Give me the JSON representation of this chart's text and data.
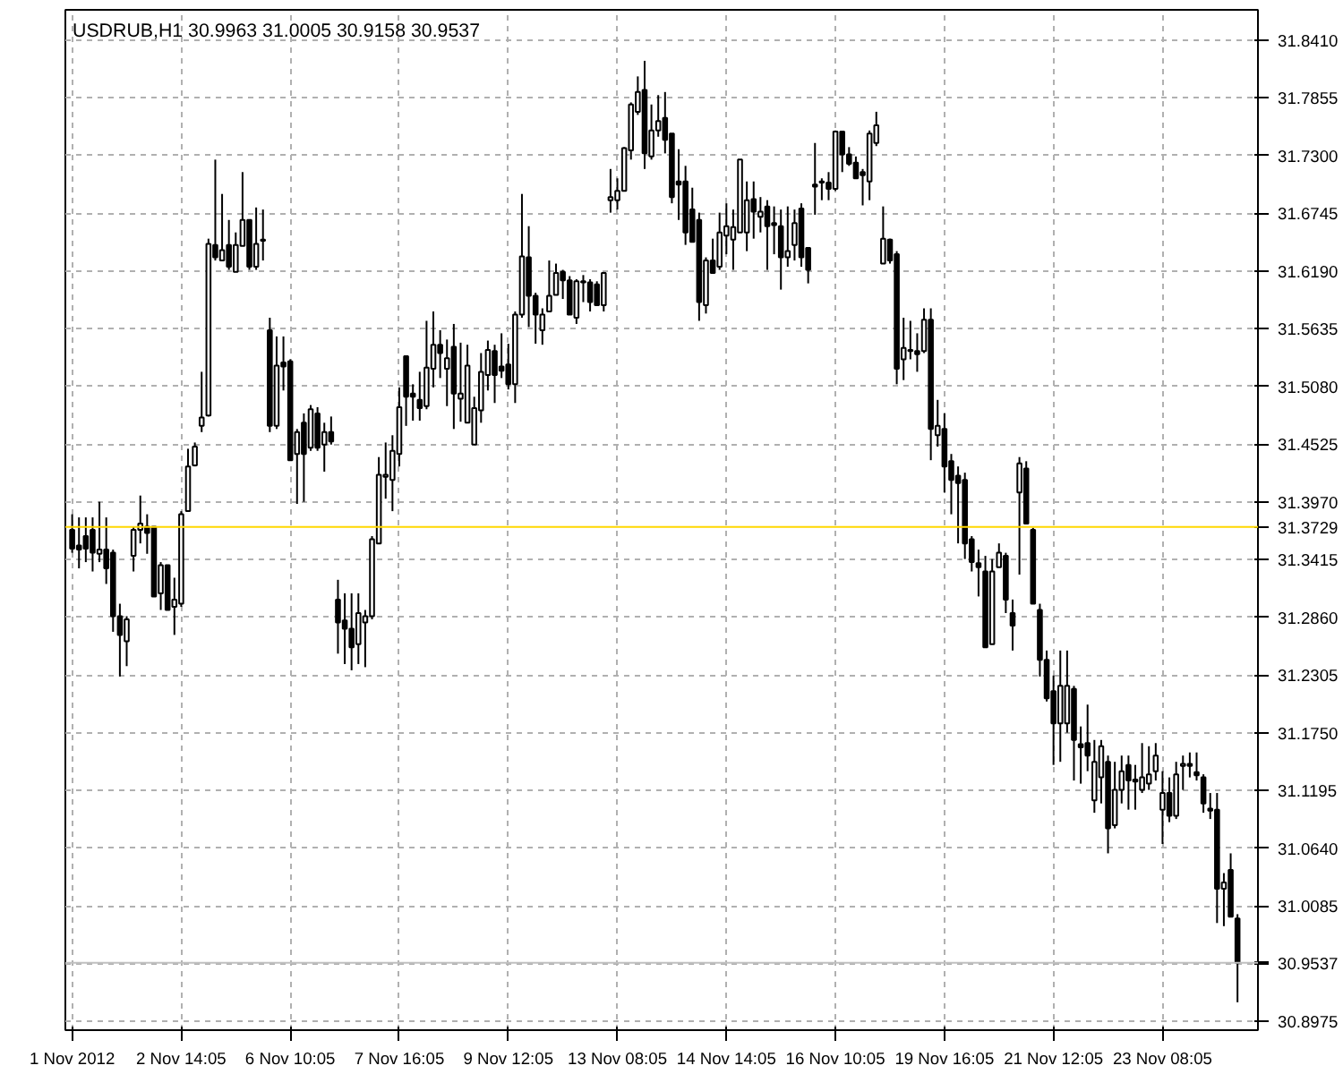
{
  "chart_data": {
    "type": "candlestick",
    "title": "USDRUB,H1  30.9963 31.0005 30.9158 30.9537",
    "categories": [
      "1 Nov 2012",
      null,
      null,
      null,
      null,
      null,
      null,
      null,
      null,
      null,
      null,
      null,
      null,
      null,
      null,
      null,
      "2 Nov 14:05",
      null,
      null,
      null,
      null,
      null,
      null,
      null,
      null,
      null,
      null,
      null,
      null,
      null,
      null,
      null,
      "6 Nov 10:05",
      null,
      null,
      null,
      null,
      null,
      null,
      null,
      null,
      null,
      null,
      null,
      null,
      null,
      null,
      null,
      "7 Nov 16:05",
      null,
      null,
      null,
      null,
      null,
      null,
      null,
      null,
      null,
      null,
      null,
      null,
      null,
      null,
      null,
      "9 Nov 12:05",
      null,
      null,
      null,
      null,
      null,
      null,
      null,
      null,
      null,
      null,
      null,
      null,
      null,
      null,
      null,
      "13 Nov 08:05",
      null,
      null,
      null,
      null,
      null,
      null,
      null,
      null,
      null,
      null,
      null,
      null,
      null,
      null,
      null,
      "14 Nov 14:05",
      null,
      null,
      null,
      null,
      null,
      null,
      null,
      null,
      null,
      null,
      null,
      null,
      null,
      null,
      null,
      "16 Nov 10:05",
      null,
      null,
      null,
      null,
      null,
      null,
      null,
      null,
      null,
      null,
      null,
      null,
      null,
      null,
      null,
      "19 Nov 16:05",
      null,
      null,
      null,
      null,
      null,
      null,
      null,
      null,
      null,
      null,
      null,
      null,
      null,
      null,
      null,
      "21 Nov 12:05",
      null,
      null,
      null,
      null,
      null,
      null,
      null,
      null,
      null,
      null,
      null,
      null,
      null,
      null,
      null,
      "23 Nov 08:05",
      null,
      null,
      null,
      null,
      null,
      null,
      null,
      null,
      null,
      null,
      null
    ],
    "ohlc": [
      [
        31.37,
        31.385,
        31.348,
        31.352
      ],
      [
        31.355,
        31.382,
        31.333,
        31.351
      ],
      [
        31.364,
        31.382,
        31.339,
        31.352
      ],
      [
        31.37,
        31.382,
        31.33,
        31.348
      ],
      [
        31.347,
        31.397,
        31.339,
        31.351
      ],
      [
        31.351,
        31.382,
        31.318,
        31.333
      ],
      [
        31.348,
        31.351,
        31.272,
        31.287
      ],
      [
        31.287,
        31.299,
        31.229,
        31.269
      ],
      [
        31.263,
        31.287,
        31.239,
        31.284
      ],
      [
        31.345,
        31.373,
        31.33,
        31.37
      ],
      [
        31.37,
        31.403,
        31.357,
        31.376
      ],
      [
        31.373,
        31.385,
        31.347,
        31.367
      ],
      [
        31.373,
        31.373,
        31.306,
        31.306
      ],
      [
        31.309,
        31.339,
        31.293,
        31.336
      ],
      [
        31.336,
        31.336,
        31.293,
        31.293
      ],
      [
        31.296,
        31.324,
        31.269,
        31.303
      ],
      [
        31.299,
        31.388,
        31.296,
        31.385
      ],
      [
        31.388,
        31.448,
        31.388,
        31.431
      ],
      [
        31.432,
        31.454,
        31.431,
        31.45
      ],
      [
        31.47,
        31.522,
        31.464,
        31.478
      ],
      [
        31.48,
        31.65,
        31.479,
        31.645
      ],
      [
        31.644,
        31.726,
        31.629,
        31.632
      ],
      [
        31.629,
        31.693,
        31.629,
        31.639
      ],
      [
        31.644,
        31.668,
        31.62,
        31.623
      ],
      [
        31.618,
        31.656,
        31.618,
        31.644
      ],
      [
        31.643,
        31.714,
        31.643,
        31.668
      ],
      [
        31.668,
        31.668,
        31.62,
        31.623
      ],
      [
        31.623,
        31.68,
        31.62,
        31.645
      ],
      [
        31.649,
        31.678,
        31.629,
        31.648
      ],
      [
        31.562,
        31.574,
        31.464,
        31.47
      ],
      [
        31.47,
        31.556,
        31.467,
        31.528
      ],
      [
        31.531,
        31.556,
        31.504,
        31.527
      ],
      [
        31.532,
        31.534,
        31.437,
        31.437
      ],
      [
        31.443,
        31.467,
        31.395,
        31.464
      ],
      [
        31.473,
        31.482,
        31.397,
        31.443
      ],
      [
        31.449,
        31.49,
        31.446,
        31.486
      ],
      [
        31.482,
        31.488,
        31.446,
        31.449
      ],
      [
        31.452,
        31.473,
        31.426,
        31.464
      ],
      [
        31.464,
        31.479,
        31.452,
        31.455
      ],
      [
        31.303,
        31.322,
        31.251,
        31.281
      ],
      [
        31.283,
        31.309,
        31.241,
        31.275
      ],
      [
        31.275,
        31.309,
        31.235,
        31.257
      ],
      [
        31.26,
        31.309,
        31.241,
        31.29
      ],
      [
        31.281,
        31.293,
        31.238,
        31.287
      ],
      [
        31.287,
        31.364,
        31.284,
        31.361
      ],
      [
        31.357,
        31.44,
        31.357,
        31.423
      ],
      [
        31.421,
        31.454,
        31.4,
        31.423
      ],
      [
        31.418,
        31.461,
        31.388,
        31.446
      ],
      [
        31.443,
        31.507,
        31.431,
        31.488
      ],
      [
        31.537,
        31.537,
        31.47,
        31.498
      ],
      [
        31.501,
        31.51,
        31.475,
        31.498
      ],
      [
        31.495,
        31.522,
        31.475,
        31.487
      ],
      [
        31.489,
        31.571,
        31.486,
        31.526
      ],
      [
        31.525,
        31.58,
        31.507,
        31.548
      ],
      [
        31.548,
        31.562,
        31.516,
        31.54
      ],
      [
        31.525,
        31.553,
        31.489,
        31.535
      ],
      [
        31.546,
        31.568,
        31.467,
        31.501
      ],
      [
        31.496,
        31.55,
        31.474,
        31.501
      ],
      [
        31.473,
        31.548,
        31.473,
        31.528
      ],
      [
        31.452,
        31.498,
        31.452,
        31.487
      ],
      [
        31.485,
        31.54,
        31.473,
        31.522
      ],
      [
        31.519,
        31.552,
        31.504,
        31.543
      ],
      [
        31.542,
        31.548,
        31.492,
        31.519
      ],
      [
        31.527,
        31.559,
        31.516,
        31.523
      ],
      [
        31.529,
        31.549,
        31.505,
        31.51
      ],
      [
        31.51,
        31.58,
        31.492,
        31.577
      ],
      [
        31.577,
        31.693,
        31.574,
        31.633
      ],
      [
        31.632,
        31.662,
        31.565,
        31.595
      ],
      [
        31.595,
        31.598,
        31.549,
        31.577
      ],
      [
        31.562,
        31.583,
        31.548,
        31.577
      ],
      [
        31.58,
        31.629,
        31.58,
        31.595
      ],
      [
        31.596,
        31.626,
        31.596,
        31.617
      ],
      [
        31.618,
        31.62,
        31.592,
        31.61
      ],
      [
        31.61,
        31.614,
        31.577,
        31.577
      ],
      [
        31.574,
        31.611,
        31.568,
        31.609
      ],
      [
        31.609,
        31.615,
        31.589,
        31.608
      ],
      [
        31.608,
        31.611,
        31.58,
        31.589
      ],
      [
        31.606,
        31.609,
        31.586,
        31.586
      ],
      [
        31.586,
        31.618,
        31.58,
        31.617
      ],
      [
        31.687,
        31.717,
        31.675,
        31.69
      ],
      [
        31.687,
        31.708,
        31.678,
        31.696
      ],
      [
        31.696,
        31.738,
        31.696,
        31.737
      ],
      [
        31.735,
        31.781,
        31.726,
        31.779
      ],
      [
        31.772,
        31.806,
        31.769,
        31.791
      ],
      [
        31.793,
        31.821,
        31.717,
        31.732
      ],
      [
        31.729,
        31.779,
        31.726,
        31.754
      ],
      [
        31.754,
        31.788,
        31.748,
        31.763
      ],
      [
        31.766,
        31.791,
        31.732,
        31.745
      ],
      [
        31.751,
        31.751,
        31.684,
        31.69
      ],
      [
        31.705,
        31.736,
        31.668,
        31.702
      ],
      [
        31.705,
        31.72,
        31.644,
        31.656
      ],
      [
        31.678,
        31.699,
        31.647,
        31.647
      ],
      [
        31.668,
        31.675,
        31.571,
        31.589
      ],
      [
        31.586,
        31.632,
        31.578,
        31.629
      ],
      [
        31.629,
        31.65,
        31.617,
        31.617
      ],
      [
        31.623,
        31.675,
        31.62,
        31.656
      ],
      [
        31.653,
        31.684,
        31.635,
        31.662
      ],
      [
        31.649,
        31.678,
        31.62,
        31.661
      ],
      [
        31.656,
        31.726,
        31.656,
        31.726
      ],
      [
        31.656,
        31.705,
        31.638,
        31.687
      ],
      [
        31.688,
        31.705,
        31.65,
        31.676
      ],
      [
        31.671,
        31.69,
        31.656,
        31.676
      ],
      [
        31.681,
        31.687,
        31.62,
        31.662
      ],
      [
        31.665,
        31.681,
        31.635,
        31.663
      ],
      [
        31.662,
        31.678,
        31.601,
        31.632
      ],
      [
        31.632,
        31.681,
        31.623,
        31.638
      ],
      [
        31.644,
        31.678,
        31.629,
        31.665
      ],
      [
        31.679,
        31.684,
        31.623,
        31.632
      ],
      [
        31.641,
        31.641,
        31.607,
        31.62
      ],
      [
        31.702,
        31.742,
        31.673,
        31.7
      ],
      [
        31.705,
        31.708,
        31.687,
        31.704
      ],
      [
        31.704,
        31.714,
        31.687,
        31.698
      ],
      [
        31.698,
        31.754,
        31.696,
        31.753
      ],
      [
        31.753,
        31.753,
        31.714,
        31.731
      ],
      [
        31.731,
        31.738,
        31.72,
        31.722
      ],
      [
        31.723,
        31.729,
        31.708,
        31.708
      ],
      [
        31.714,
        31.717,
        31.682,
        31.711
      ],
      [
        31.705,
        31.754,
        31.687,
        31.751
      ],
      [
        31.742,
        31.772,
        31.739,
        31.759
      ],
      [
        31.626,
        31.681,
        31.626,
        31.65
      ],
      [
        31.649,
        31.65,
        31.626,
        31.629
      ],
      [
        31.635,
        31.638,
        31.51,
        31.525
      ],
      [
        31.534,
        31.574,
        31.514,
        31.545
      ],
      [
        31.543,
        31.571,
        31.534,
        31.542
      ],
      [
        31.542,
        31.559,
        31.522,
        31.539
      ],
      [
        31.542,
        31.583,
        31.54,
        31.572
      ],
      [
        31.572,
        31.583,
        31.437,
        31.467
      ],
      [
        31.461,
        31.495,
        31.45,
        31.47
      ],
      [
        31.467,
        31.482,
        31.406,
        31.431
      ],
      [
        31.436,
        31.443,
        31.385,
        31.418
      ],
      [
        31.422,
        31.431,
        31.357,
        31.415
      ],
      [
        31.418,
        31.425,
        31.342,
        31.357
      ],
      [
        31.361,
        31.364,
        31.33,
        31.339
      ],
      [
        31.338,
        31.351,
        31.306,
        31.334
      ],
      [
        31.33,
        31.345,
        31.257,
        31.257
      ],
      [
        31.26,
        31.342,
        31.26,
        31.33
      ],
      [
        31.334,
        31.357,
        31.334,
        31.348
      ],
      [
        31.345,
        31.348,
        31.29,
        31.303
      ],
      [
        31.29,
        31.303,
        31.254,
        31.278
      ],
      [
        31.406,
        31.44,
        31.327,
        31.434
      ],
      [
        31.429,
        31.436,
        31.376,
        31.376
      ],
      [
        31.37,
        31.372,
        31.299,
        31.299
      ],
      [
        31.293,
        31.299,
        31.229,
        31.245
      ],
      [
        31.245,
        31.254,
        31.205,
        31.208
      ],
      [
        31.215,
        31.23,
        31.144,
        31.184
      ],
      [
        31.184,
        31.254,
        31.147,
        31.22
      ],
      [
        31.184,
        31.254,
        31.175,
        31.22
      ],
      [
        31.217,
        31.22,
        31.129,
        31.168
      ],
      [
        31.164,
        31.181,
        31.126,
        31.161
      ],
      [
        31.165,
        31.202,
        31.138,
        31.153
      ],
      [
        31.11,
        31.168,
        31.098,
        31.147
      ],
      [
        31.132,
        31.168,
        31.107,
        31.162
      ],
      [
        31.147,
        31.153,
        31.059,
        31.083
      ],
      [
        31.086,
        31.147,
        31.083,
        31.12
      ],
      [
        31.12,
        31.153,
        31.107,
        31.138
      ],
      [
        31.144,
        31.153,
        31.101,
        31.129
      ],
      [
        31.13,
        31.144,
        31.101,
        31.128
      ],
      [
        31.12,
        31.165,
        31.117,
        31.132
      ],
      [
        31.126,
        31.162,
        31.12,
        31.135
      ],
      [
        31.138,
        31.165,
        31.129,
        31.153
      ],
      [
        31.101,
        31.138,
        31.068,
        31.117
      ],
      [
        31.117,
        31.132,
        31.089,
        31.095
      ],
      [
        31.095,
        31.147,
        31.092,
        31.135
      ],
      [
        31.143,
        31.153,
        31.12,
        31.145
      ],
      [
        31.145,
        31.156,
        31.132,
        31.143
      ],
      [
        31.137,
        31.156,
        31.129,
        31.134
      ],
      [
        31.132,
        31.135,
        31.098,
        31.107
      ],
      [
        31.102,
        31.117,
        31.092,
        31.1
      ],
      [
        31.101,
        31.117,
        30.992,
        31.025
      ],
      [
        31.025,
        31.04,
        30.989,
        31.031
      ],
      [
        31.043,
        31.059,
        30.998,
        30.998
      ],
      [
        30.9963,
        31.0005,
        30.9158,
        30.9537
      ]
    ],
    "ylim": [
      30.889,
      31.87
    ],
    "yticks": [
      {
        "value": 30.8975,
        "label": "30.8975"
      },
      {
        "value": 30.953,
        "label": null
      },
      {
        "value": 31.0085,
        "label": "31.0085"
      },
      {
        "value": 31.064,
        "label": "31.0640"
      },
      {
        "value": 31.1195,
        "label": "31.1195"
      },
      {
        "value": 31.175,
        "label": "31.1750"
      },
      {
        "value": 31.2305,
        "label": "31.2305"
      },
      {
        "value": 31.286,
        "label": "31.2860"
      },
      {
        "value": 31.3415,
        "label": "31.3415"
      },
      {
        "value": 31.397,
        "label": "31.3970"
      },
      {
        "value": 31.4525,
        "label": "31.4525"
      },
      {
        "value": 31.508,
        "label": "31.5080"
      },
      {
        "value": 31.5635,
        "label": "31.5635"
      },
      {
        "value": 31.619,
        "label": "31.6190"
      },
      {
        "value": 31.6745,
        "label": "31.6745"
      },
      {
        "value": 31.73,
        "label": "31.7300"
      },
      {
        "value": 31.7855,
        "label": "31.7855"
      },
      {
        "value": 31.841,
        "label": "31.8410"
      }
    ],
    "ref_lines": [
      {
        "axis": "y",
        "value": 31.3729,
        "label": "31.3729",
        "color": "#ffd700"
      },
      {
        "axis": "y",
        "value": 30.9537,
        "label": "30.9537",
        "color": "#c0c0c0"
      }
    ],
    "grid": true
  }
}
